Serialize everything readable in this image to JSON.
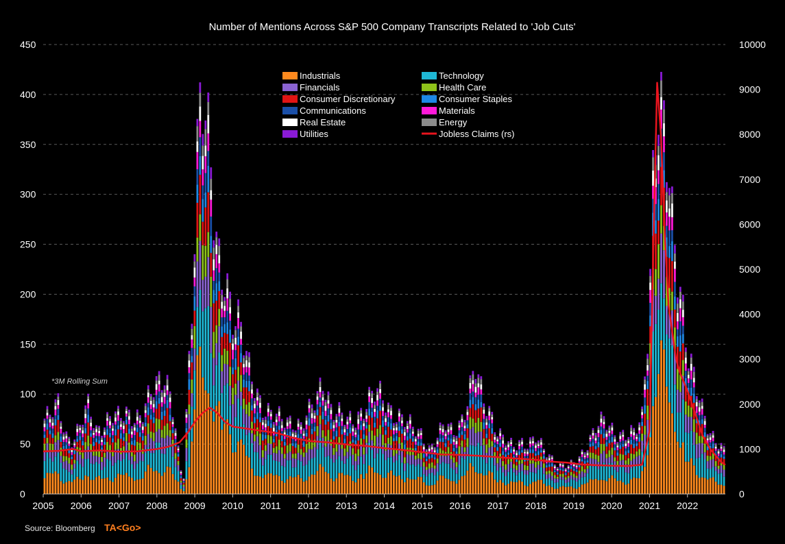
{
  "chart_data": {
    "type": "bar",
    "title": "Number of Mentions Across S&P 500 Company Transcripts Related to 'Job Cuts'",
    "annotation": "*3M Rolling Sum",
    "stacked": true,
    "grid": "horizontal dashed",
    "legend_placement": "top-center",
    "ylim_left": [
      0,
      450
    ],
    "ylim_right": [
      0,
      10000
    ],
    "left_ticks": [
      "0",
      "50",
      "100",
      "150",
      "200",
      "250",
      "300",
      "350",
      "400",
      "450"
    ],
    "right_ticks": [
      "0",
      "1000",
      "2000",
      "3000",
      "4000",
      "5000",
      "6000",
      "7000",
      "8000",
      "9000",
      "10000"
    ],
    "x_ticks": [
      "2005",
      "2006",
      "2007",
      "2008",
      "2009",
      "2010",
      "2011",
      "2012",
      "2013",
      "2014",
      "2015",
      "2016",
      "2017",
      "2018",
      "2019",
      "2020",
      "2021",
      "2022"
    ],
    "x_range": [
      2005.0,
      2023.0
    ],
    "stack_order": [
      "Industrials",
      "Technology",
      "Financials",
      "Health Care",
      "Consumer Discretionary",
      "Consumer Staples",
      "Communications",
      "Materials",
      "Real Estate",
      "Energy",
      "Utilities"
    ],
    "sector_colors": {
      "Industrials": "#ff8a1e",
      "Technology": "#1fb8d6",
      "Financials": "#8a63d2",
      "Health Care": "#8ec21a",
      "Consumer Discretionary": "#e01414",
      "Consumer Staples": "#1e88e5",
      "Communications": "#1a4fa8",
      "Materials": "#ff19d9",
      "Real Estate": "#ffffff",
      "Energy": "#8c8c8c",
      "Utilities": "#8a1ad6"
    },
    "legend": [
      {
        "label": "Industrials",
        "kind": "box",
        "color": "#ff8a1e"
      },
      {
        "label": "Technology",
        "kind": "box",
        "color": "#1fb8d6"
      },
      {
        "label": "Financials",
        "kind": "box",
        "color": "#8a63d2"
      },
      {
        "label": "Health Care",
        "kind": "box",
        "color": "#8ec21a"
      },
      {
        "label": "Consumer Discretionary",
        "kind": "box",
        "color": "#e01414"
      },
      {
        "label": "Consumer Staples",
        "kind": "box",
        "color": "#1e88e5"
      },
      {
        "label": "Communications",
        "kind": "box",
        "color": "#1a4fa8"
      },
      {
        "label": "Materials",
        "kind": "box",
        "color": "#ff19d9"
      },
      {
        "label": "Real Estate",
        "kind": "box",
        "color": "#ffffff"
      },
      {
        "label": "Energy",
        "kind": "box",
        "color": "#8c8c8c"
      },
      {
        "label": "Utilities",
        "kind": "box",
        "color": "#8a1ad6"
      },
      {
        "label": "Jobless Claims (rs)",
        "kind": "line",
        "color": "#e8141e"
      }
    ],
    "total_mentions": [
      [
        2005.0,
        75
      ],
      [
        2005.2,
        78
      ],
      [
        2005.4,
        90
      ],
      [
        2005.6,
        60
      ],
      [
        2005.8,
        55
      ],
      [
        2006.0,
        70
      ],
      [
        2006.2,
        88
      ],
      [
        2006.4,
        65
      ],
      [
        2006.6,
        72
      ],
      [
        2006.8,
        78
      ],
      [
        2007.0,
        75
      ],
      [
        2007.2,
        82
      ],
      [
        2007.4,
        80
      ],
      [
        2007.6,
        78
      ],
      [
        2007.8,
        95
      ],
      [
        2008.0,
        110
      ],
      [
        2008.2,
        125
      ],
      [
        2008.4,
        95
      ],
      [
        2008.6,
        30
      ],
      [
        2008.7,
        10
      ],
      [
        2008.8,
        95
      ],
      [
        2008.9,
        160
      ],
      [
        2009.0,
        280
      ],
      [
        2009.1,
        400
      ],
      [
        2009.2,
        430
      ],
      [
        2009.3,
        380
      ],
      [
        2009.4,
        330
      ],
      [
        2009.5,
        270
      ],
      [
        2009.6,
        230
      ],
      [
        2009.7,
        215
      ],
      [
        2009.8,
        225
      ],
      [
        2009.9,
        205
      ],
      [
        2010.0,
        190
      ],
      [
        2010.2,
        170
      ],
      [
        2010.4,
        125
      ],
      [
        2010.6,
        105
      ],
      [
        2010.8,
        90
      ],
      [
        2011.0,
        82
      ],
      [
        2011.2,
        75
      ],
      [
        2011.4,
        72
      ],
      [
        2011.6,
        75
      ],
      [
        2011.8,
        70
      ],
      [
        2012.0,
        80
      ],
      [
        2012.2,
        92
      ],
      [
        2012.4,
        118
      ],
      [
        2012.6,
        88
      ],
      [
        2012.8,
        80
      ],
      [
        2013.0,
        72
      ],
      [
        2013.2,
        75
      ],
      [
        2013.4,
        85
      ],
      [
        2013.6,
        95
      ],
      [
        2013.8,
        100
      ],
      [
        2014.0,
        95
      ],
      [
        2014.2,
        85
      ],
      [
        2014.4,
        78
      ],
      [
        2014.6,
        70
      ],
      [
        2014.8,
        65
      ],
      [
        2015.0,
        62
      ],
      [
        2015.2,
        45
      ],
      [
        2015.4,
        55
      ],
      [
        2015.6,
        70
      ],
      [
        2015.8,
        65
      ],
      [
        2016.0,
        72
      ],
      [
        2016.2,
        90
      ],
      [
        2016.4,
        125
      ],
      [
        2016.6,
        100
      ],
      [
        2016.8,
        85
      ],
      [
        2017.0,
        60
      ],
      [
        2017.2,
        52
      ],
      [
        2017.4,
        48
      ],
      [
        2017.6,
        55
      ],
      [
        2017.8,
        50
      ],
      [
        2018.0,
        55
      ],
      [
        2018.2,
        45
      ],
      [
        2018.4,
        38
      ],
      [
        2018.6,
        30
      ],
      [
        2018.8,
        28
      ],
      [
        2019.0,
        30
      ],
      [
        2019.2,
        40
      ],
      [
        2019.4,
        55
      ],
      [
        2019.6,
        68
      ],
      [
        2019.8,
        72
      ],
      [
        2020.0,
        65
      ],
      [
        2020.2,
        62
      ],
      [
        2020.4,
        60
      ],
      [
        2020.6,
        60
      ],
      [
        2020.8,
        75
      ],
      [
        2021.0,
        200
      ],
      [
        2021.1,
        340
      ],
      [
        2021.2,
        405
      ],
      [
        2021.3,
        380
      ],
      [
        2021.4,
        350
      ],
      [
        2021.5,
        310
      ],
      [
        2021.6,
        265
      ],
      [
        2021.7,
        240
      ],
      [
        2021.8,
        215
      ],
      [
        2021.9,
        185
      ],
      [
        2022.0,
        150
      ],
      [
        2022.2,
        110
      ],
      [
        2022.4,
        80
      ],
      [
        2022.6,
        62
      ],
      [
        2022.8,
        55
      ],
      [
        2023.0,
        42
      ]
    ],
    "jobless_claims_rs": [
      [
        2005.0,
        950
      ],
      [
        2005.4,
        960
      ],
      [
        2005.8,
        1000
      ],
      [
        2006.0,
        950
      ],
      [
        2006.5,
        970
      ],
      [
        2007.0,
        940
      ],
      [
        2007.5,
        950
      ],
      [
        2008.0,
        1000
      ],
      [
        2008.3,
        1050
      ],
      [
        2008.6,
        1150
      ],
      [
        2008.8,
        1350
      ],
      [
        2009.0,
        1600
      ],
      [
        2009.2,
        1800
      ],
      [
        2009.4,
        1920
      ],
      [
        2009.6,
        1800
      ],
      [
        2009.8,
        1600
      ],
      [
        2010.0,
        1500
      ],
      [
        2010.4,
        1450
      ],
      [
        2010.8,
        1400
      ],
      [
        2011.2,
        1350
      ],
      [
        2011.6,
        1250
      ],
      [
        2012.0,
        1180
      ],
      [
        2012.5,
        1150
      ],
      [
        2013.0,
        1100
      ],
      [
        2013.5,
        1070
      ],
      [
        2014.0,
        1020
      ],
      [
        2014.5,
        980
      ],
      [
        2015.0,
        930
      ],
      [
        2015.5,
        880
      ],
      [
        2016.0,
        870
      ],
      [
        2016.5,
        850
      ],
      [
        2017.0,
        820
      ],
      [
        2017.5,
        790
      ],
      [
        2018.0,
        760
      ],
      [
        2018.4,
        720
      ],
      [
        2018.8,
        700
      ],
      [
        2019.2,
        660
      ],
      [
        2019.6,
        640
      ],
      [
        2020.0,
        630
      ],
      [
        2020.4,
        620
      ],
      [
        2020.8,
        650
      ],
      [
        2021.0,
        1400
      ],
      [
        2021.1,
        5500
      ],
      [
        2021.2,
        9150
      ],
      [
        2021.3,
        8000
      ],
      [
        2021.4,
        5800
      ],
      [
        2021.5,
        4200
      ],
      [
        2021.6,
        3600
      ],
      [
        2021.7,
        3000
      ],
      [
        2021.8,
        2700
      ],
      [
        2021.9,
        2500
      ],
      [
        2022.0,
        2300
      ],
      [
        2022.2,
        1800
      ],
      [
        2022.4,
        1300
      ],
      [
        2022.6,
        1000
      ],
      [
        2022.8,
        800
      ],
      [
        2022.9,
        700
      ],
      [
        2023.0,
        650
      ]
    ]
  },
  "footer": {
    "source": "Source: Bloomberg",
    "brand": "TA<Go>"
  }
}
